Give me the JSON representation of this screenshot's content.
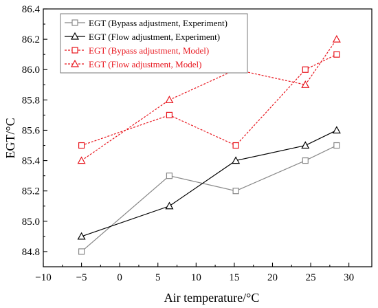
{
  "chart_data": {
    "type": "line",
    "xlabel": "Air temperature/°C",
    "ylabel": "EGT/°C",
    "xlim": [
      -10,
      33
    ],
    "ylim": [
      84.7,
      86.4
    ],
    "xticks": [
      -10,
      -5,
      0,
      5,
      10,
      15,
      20,
      25,
      30
    ],
    "yticks": [
      84.8,
      85.0,
      85.2,
      85.4,
      85.6,
      85.8,
      86.0,
      86.2,
      86.4
    ],
    "x_tick_labels": [
      "−10",
      "−5",
      "0",
      "5",
      "10",
      "15",
      "20",
      "25",
      "30"
    ],
    "y_tick_labels": [
      "84.8",
      "85.0",
      "85.2",
      "85.4",
      "85.6",
      "85.8",
      "86.0",
      "86.2",
      "86.4"
    ],
    "grid": false,
    "legend_position": "top-left",
    "series": [
      {
        "name": "EGT (Bypass adjustment, Experiment)",
        "x": [
          -5,
          6.5,
          15.2,
          24.3,
          28.4
        ],
        "y": [
          84.8,
          85.3,
          85.2,
          85.4,
          85.5
        ],
        "color": "#888888",
        "marker": "square",
        "linestyle": "solid"
      },
      {
        "name": "EGT (Flow adjustment, Experiment)",
        "x": [
          -5,
          6.5,
          15.2,
          24.3,
          28.4
        ],
        "y": [
          84.9,
          85.1,
          85.4,
          85.5,
          85.6
        ],
        "color": "#000000",
        "marker": "triangle",
        "linestyle": "solid"
      },
      {
        "name": "EGT (Bypass adjustment, Model)",
        "x": [
          -5,
          6.5,
          15.2,
          24.3,
          28.4
        ],
        "y": [
          85.5,
          85.7,
          85.5,
          86.0,
          86.1
        ],
        "color": "#e8141c",
        "marker": "square",
        "linestyle": "dashed"
      },
      {
        "name": "EGT (Flow adjustment, Model)",
        "x": [
          -5,
          6.5,
          15.2,
          24.3,
          28.4
        ],
        "y": [
          85.4,
          85.8,
          86.0,
          85.9,
          86.2
        ],
        "color": "#e8141c",
        "marker": "triangle",
        "linestyle": "dashed"
      }
    ]
  }
}
